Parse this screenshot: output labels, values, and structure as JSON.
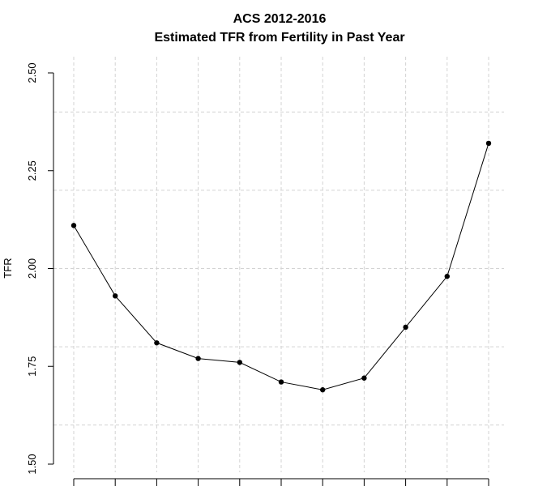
{
  "chart_data": {
    "type": "line",
    "title": "ACS 2012-2016",
    "subtitle": "Estimated TFR from Fertility in Past Year",
    "xlabel": "",
    "ylabel": "TFR",
    "x": [
      1,
      2,
      3,
      4,
      5,
      6,
      7,
      8,
      9,
      10,
      11
    ],
    "values": [
      2.11,
      1.93,
      1.81,
      1.77,
      1.76,
      1.71,
      1.69,
      1.72,
      1.85,
      1.98,
      2.32
    ],
    "ylim": [
      1.5,
      2.5
    ],
    "y_ticks": [
      1.5,
      1.75,
      2.0,
      2.25,
      2.5
    ],
    "y_tick_labels": [
      "1.50",
      "1.75",
      "2.00",
      "2.25",
      "2.50"
    ],
    "x_tick_labels_visible": false,
    "grid": true,
    "line_color": "#000000",
    "grid_color": "#d3d3d3"
  }
}
